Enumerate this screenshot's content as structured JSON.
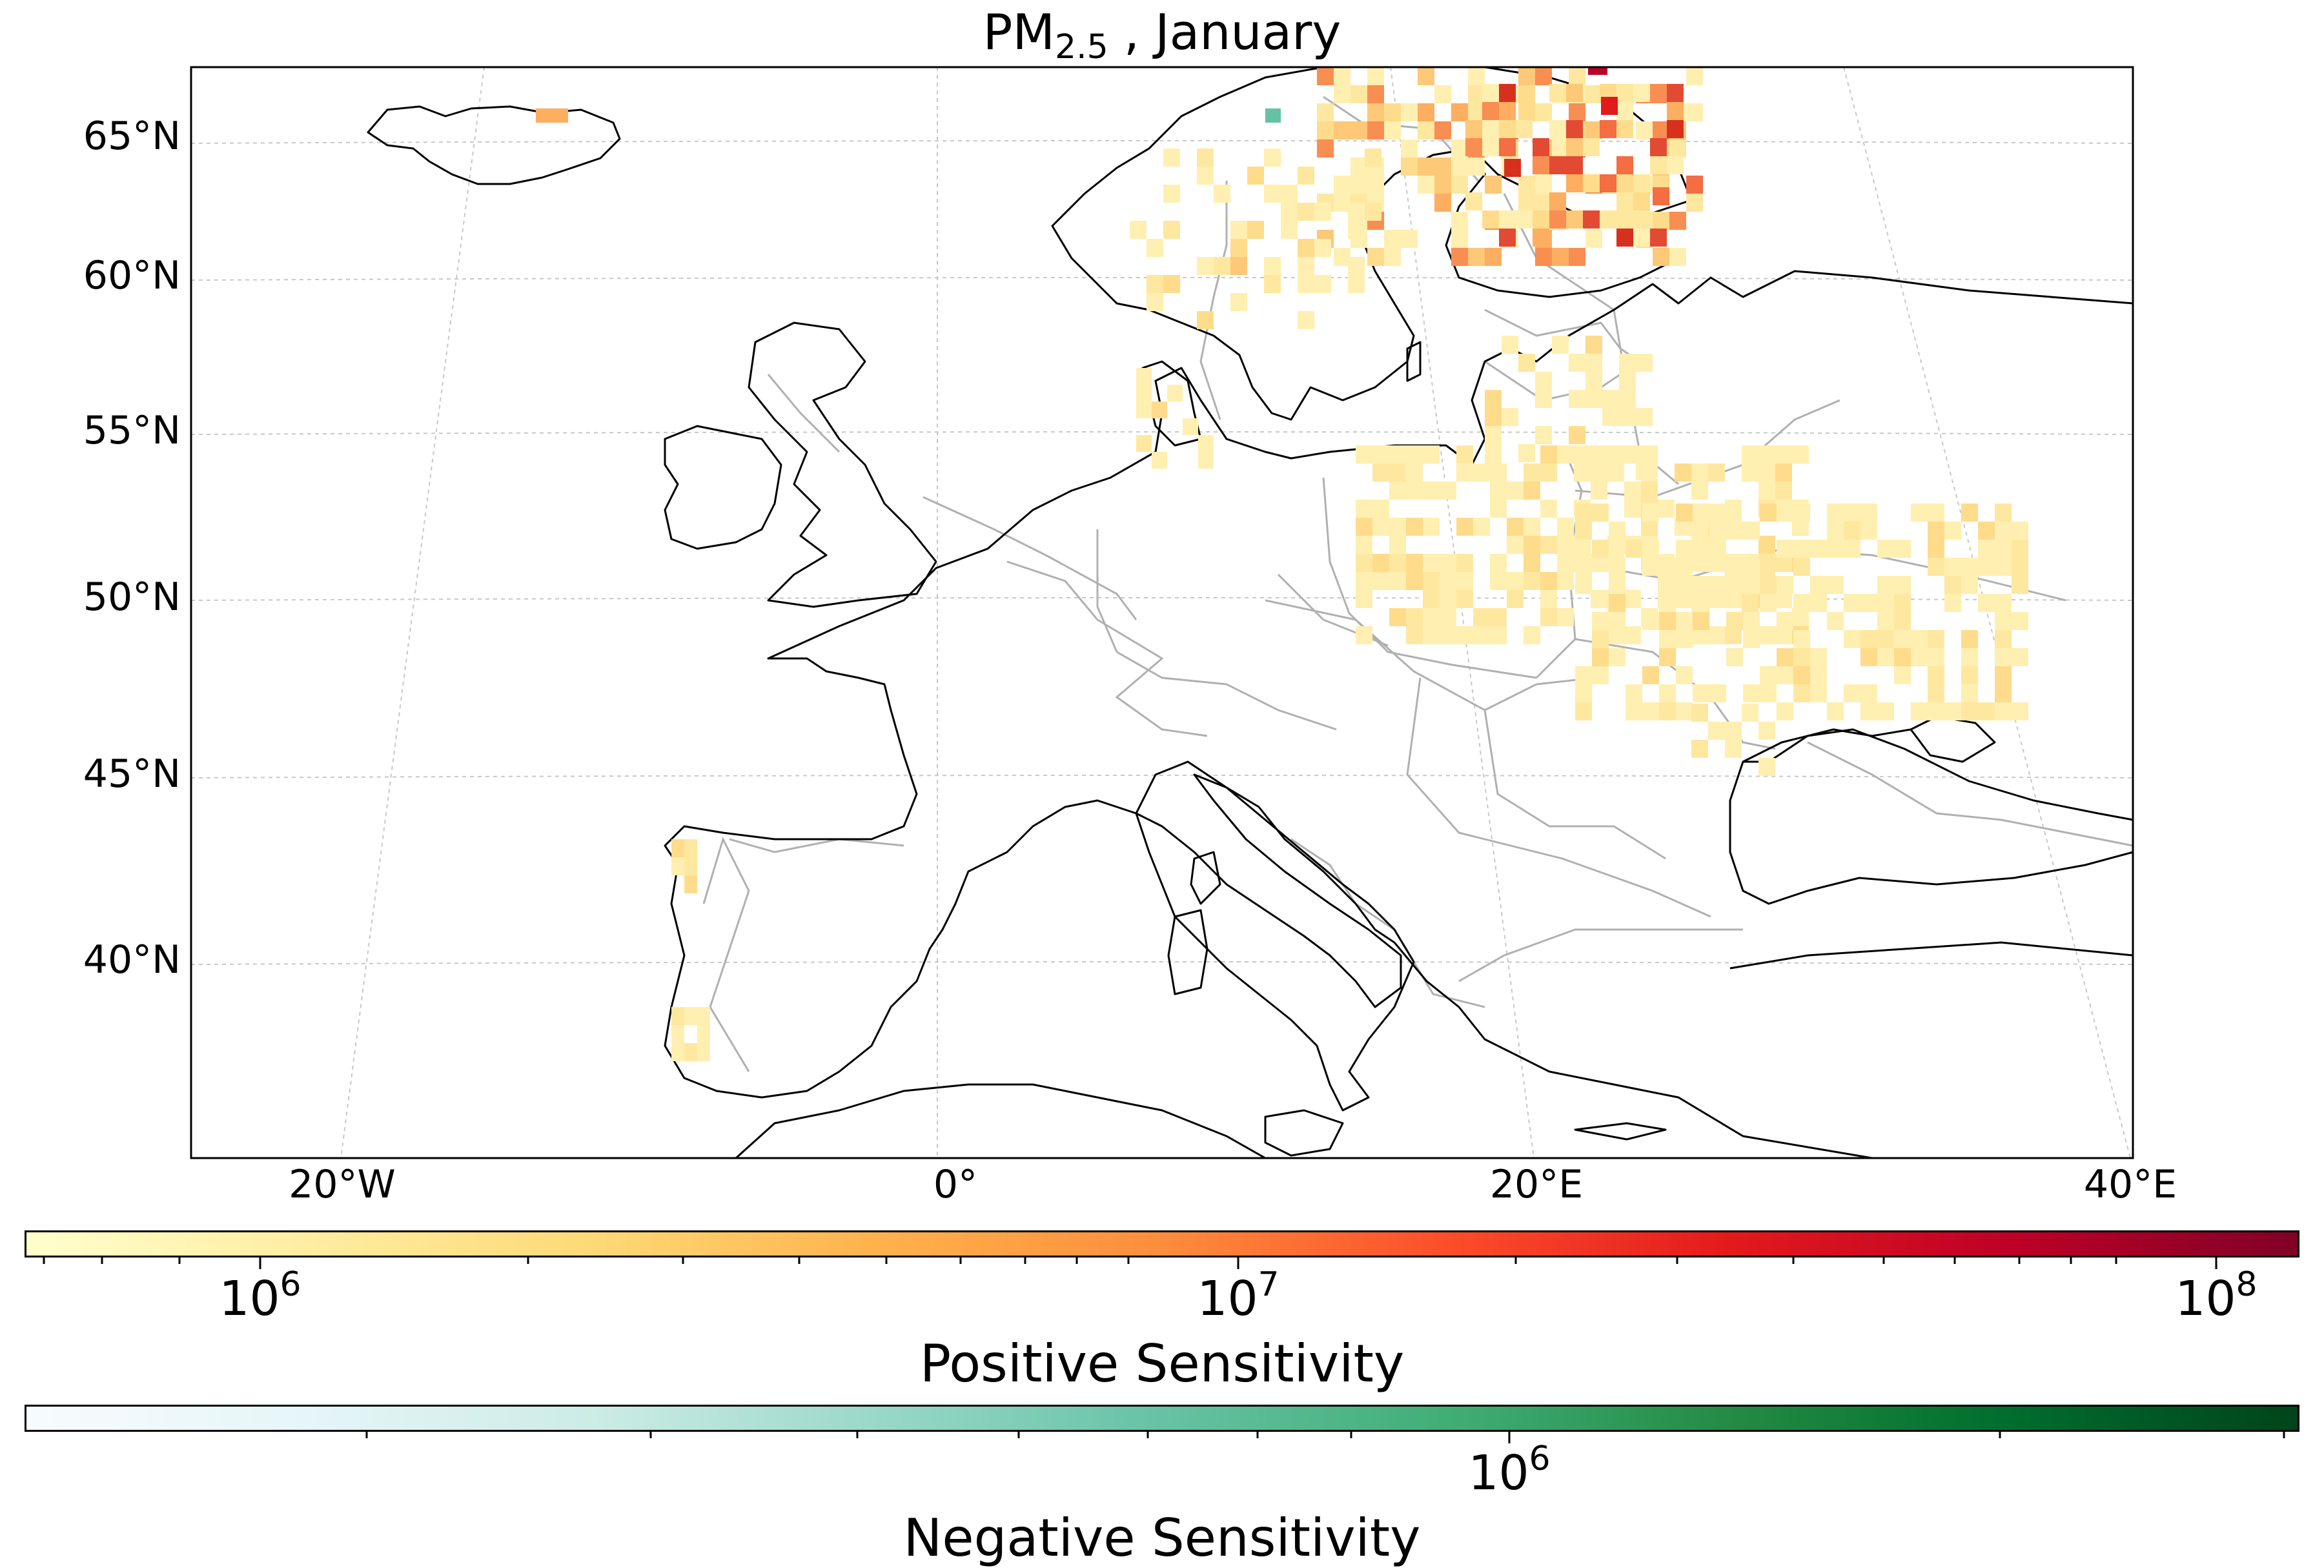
{
  "title": {
    "main": "PM",
    "sub": "2.5",
    "rest": " , January"
  },
  "map": {
    "lat_ticks": [
      {
        "value": 65,
        "label": "65°N"
      },
      {
        "value": 60,
        "label": "60°N"
      },
      {
        "value": 55,
        "label": "55°N"
      },
      {
        "value": 50,
        "label": "50°N"
      },
      {
        "value": 45,
        "label": "45°N"
      },
      {
        "value": 40,
        "label": "40°N"
      }
    ],
    "lon_ticks": [
      {
        "value": -20,
        "label": "20°W"
      },
      {
        "value": 0,
        "label": "0°"
      },
      {
        "value": 20,
        "label": "20°E"
      },
      {
        "value": 40,
        "label": "40°E"
      }
    ],
    "projection": "lambert-conformal",
    "extent": {
      "lon": [
        -25,
        40
      ],
      "lat": [
        35,
        67
      ]
    },
    "colors": {
      "coastline": "#000000",
      "borders": "#b0b0b0",
      "grid": "#c8c8c8"
    }
  },
  "colorbars": {
    "positive": {
      "label": "Positive Sensitivity",
      "colormap": "YlOrRd",
      "scale": "log",
      "range": [
        500000,
        130000000
      ],
      "ticks": [
        {
          "base": "10",
          "exp": "6"
        },
        {
          "base": "10",
          "exp": "7"
        },
        {
          "base": "10",
          "exp": "8"
        }
      ]
    },
    "negative": {
      "label": "Negative Sensitivity",
      "colormap": "BuGn",
      "scale": "log",
      "range": [
        150000,
        2500000
      ],
      "ticks": [
        {
          "base": "10",
          "exp": "6"
        }
      ]
    }
  }
}
